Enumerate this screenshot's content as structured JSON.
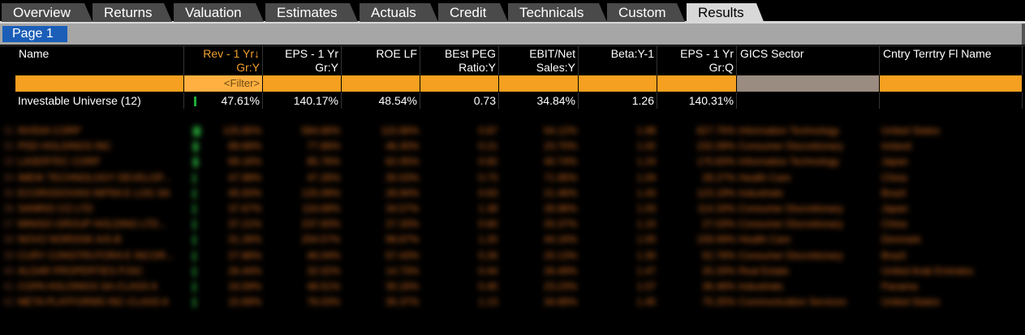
{
  "tabs": [
    {
      "label": "Overview",
      "active": false
    },
    {
      "label": "Returns",
      "active": false
    },
    {
      "label": "Valuation",
      "active": false
    },
    {
      "label": "Estimates",
      "active": false
    },
    {
      "label": "Actuals",
      "active": false
    },
    {
      "label": "Credit",
      "active": false
    },
    {
      "label": "Technicals",
      "active": false
    },
    {
      "label": "Custom",
      "active": false
    },
    {
      "label": "Results",
      "active": true
    }
  ],
  "page": {
    "label": "Page 1"
  },
  "columns": [
    {
      "l1": "Name",
      "l2": ""
    },
    {
      "l1": "Rev - 1 Yr↓",
      "l2": "Gr:Y"
    },
    {
      "l1": "EPS - 1 Yr",
      "l2": "Gr:Y"
    },
    {
      "l1": "ROE LF",
      "l2": ""
    },
    {
      "l1": "BEst PEG",
      "l2": "Ratio:Y"
    },
    {
      "l1": "EBIT/Net",
      "l2": "Sales:Y"
    },
    {
      "l1": "Beta:Y-1",
      "l2": ""
    },
    {
      "l1": "EPS - 1 Yr",
      "l2": "Gr:Q"
    },
    {
      "l1": "GICS Sector",
      "l2": ""
    },
    {
      "l1": "Cntry Terrtry Fl Name",
      "l2": ""
    }
  ],
  "filter_label": "<Filter>",
  "summary": {
    "name": "Investable Universe (12)",
    "rev": "47.61%",
    "eps": "140.17%",
    "roe": "48.54%",
    "peg": "0.73",
    "ebit": "34.84%",
    "beta": "1.26",
    "epsq": "140.31%"
  },
  "rows": [
    {
      "n": "31",
      "name": "NVIDIA CORP",
      "rev": "125.85%",
      "eps": "584.66%",
      "roe": "115.66%",
      "peg": "0.87",
      "ebit": "54.12%",
      "beta": "1.98",
      "epsq": "627.75%",
      "sector": "Information Technology",
      "country": "United States",
      "bar": 3
    },
    {
      "n": "32",
      "name": "PDD HOLDINGS INC",
      "rev": "89.68%",
      "eps": "77.66%",
      "roe": "46.30%",
      "peg": "0.21",
      "ebit": "23.70%",
      "beta": "1.02",
      "epsq": "232.09%",
      "sector": "Consumer Discretionary",
      "country": "Ireland",
      "bar": 2
    },
    {
      "n": "33",
      "name": "LASERTEC CORP",
      "rev": "69.16%",
      "eps": "85.76%",
      "roe": "62.05%",
      "peg": "0.92",
      "ebit": "40.74%",
      "beta": "1.24",
      "epsq": "170.83%",
      "sector": "Information Technology",
      "country": "Japan",
      "bar": 2
    },
    {
      "n": "34",
      "name": "IMEIK TECHNOLOGY DEVELOP...",
      "rev": "47.99%",
      "eps": "47.26%",
      "roe": "30.03%",
      "peg": "0.73",
      "ebit": "71.95%",
      "beta": "1.04",
      "epsq": "28.27%",
      "sector": "Health Care",
      "country": "China",
      "bar": 1
    },
    {
      "n": "35",
      "name": "ECORODOVIAS INFRA E LOG SA",
      "rev": "45.93%",
      "eps": "125.09%",
      "roe": "28.94%",
      "peg": "0.63",
      "ebit": "21.46%",
      "beta": "1.43",
      "epsq": "123.19%",
      "sector": "Industrials",
      "country": "Brazil",
      "bar": 1
    },
    {
      "n": "36",
      "name": "SANRIO CO LTD",
      "rev": "37.67%",
      "eps": "116.69%",
      "roe": "34.57%",
      "peg": "1.38",
      "ebit": "26.96%",
      "beta": "1.03",
      "epsq": "114.33%",
      "sector": "Consumer Discretionary",
      "country": "Japan",
      "bar": 1
    },
    {
      "n": "37",
      "name": "MINISO GROUP HOLDING LTD...",
      "rev": "37.21%",
      "eps": "237.93%",
      "roe": "27.33%",
      "peg": "0.60",
      "ebit": "20.37%",
      "beta": "1.10",
      "epsq": "27.03%",
      "sector": "Consumer Discretionary",
      "country": "China",
      "bar": 1
    },
    {
      "n": "38",
      "name": "NOVO NORDISK A/S-B",
      "rev": "31.26%",
      "eps": "204.57%",
      "roe": "99.87%",
      "peg": "1.20",
      "ebit": "44.16%",
      "beta": "1.00",
      "epsq": "159.09%",
      "sector": "Health Care",
      "country": "Denmark",
      "bar": 1
    },
    {
      "n": "39",
      "name": "CURY CONSTRUTORA E INCOR...",
      "rev": "27.86%",
      "eps": "46.04%",
      "roe": "57.43%",
      "peg": "0.26",
      "ebit": "20.13%",
      "beta": "1.30",
      "epsq": "52.78%",
      "sector": "Consumer Discretionary",
      "country": "Brazil",
      "bar": 1
    },
    {
      "n": "40",
      "name": "ALDAR PROPERTIES PJSC",
      "rev": "26.44%",
      "eps": "32.02%",
      "roe": "14.73%",
      "peg": "0.44",
      "ebit": "26.49%",
      "beta": "1.47",
      "epsq": "25.33%",
      "sector": "Real Estate",
      "country": "United Arab Emirates",
      "bar": 1
    },
    {
      "n": "41",
      "name": "COPA HOLDINGS SA-CLASS A",
      "rev": "16.59%",
      "eps": "48.51%",
      "roe": "30.16%",
      "peg": "0.40",
      "ebit": "23.23%",
      "beta": "1.07",
      "epsq": "36.48%",
      "sector": "Industrials",
      "country": "Panama",
      "bar": 1
    },
    {
      "n": "42",
      "name": "META PLATFORMS INC-CLASS A",
      "rev": "15.69%",
      "eps": "76.03%",
      "roe": "35.37%",
      "peg": "1.13",
      "ebit": "34.66%",
      "beta": "1.45",
      "epsq": "75.25%",
      "sector": "Communication Services",
      "country": "United States",
      "bar": 1
    }
  ],
  "colors": {
    "accent_orange": "#f5a020",
    "active_blue": "#1a5eb8",
    "positive_green": "#1faa3c"
  }
}
